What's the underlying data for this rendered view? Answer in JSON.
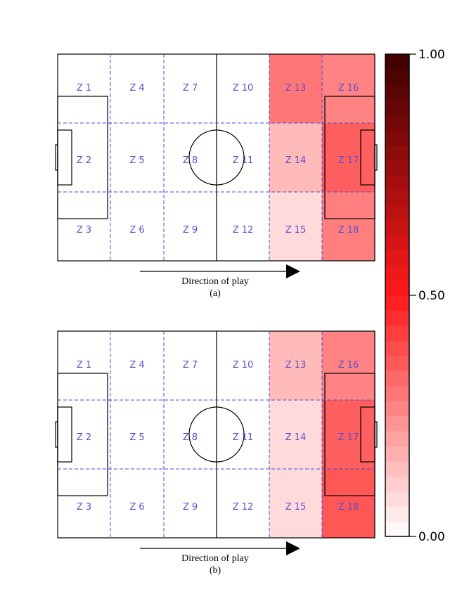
{
  "chart_data": {
    "type": "heatmap",
    "colorbar": {
      "min": 0.0,
      "max": 1.0,
      "ticks": [
        {
          "value": 1.0,
          "label": "1.00"
        },
        {
          "value": 0.5,
          "label": "0.50"
        },
        {
          "value": 0.0,
          "label": "0.00"
        }
      ],
      "colormap_stops": [
        "#ffffff",
        "#ff1a1a",
        "#3d0000"
      ]
    },
    "arrow_text": "Direction of play",
    "panels": [
      {
        "caption": "(a)",
        "zones": [
          {
            "id": 1,
            "label": "Z 1",
            "value": 0.0
          },
          {
            "id": 2,
            "label": "Z 2",
            "value": 0.0
          },
          {
            "id": 3,
            "label": "Z 3",
            "value": 0.0
          },
          {
            "id": 4,
            "label": "Z 4",
            "value": 0.0
          },
          {
            "id": 5,
            "label": "Z 5",
            "value": 0.0
          },
          {
            "id": 6,
            "label": "Z 6",
            "value": 0.0
          },
          {
            "id": 7,
            "label": "Z 7",
            "value": 0.0
          },
          {
            "id": 8,
            "label": "Z 8",
            "value": 0.0
          },
          {
            "id": 9,
            "label": "Z 9",
            "value": 0.0
          },
          {
            "id": 10,
            "label": "Z 10",
            "value": 0.0
          },
          {
            "id": 11,
            "label": "Z 11",
            "value": 0.0
          },
          {
            "id": 12,
            "label": "Z 12",
            "value": 0.0
          },
          {
            "id": 13,
            "label": "Z 13",
            "value": 0.3
          },
          {
            "id": 14,
            "label": "Z 14",
            "value": 0.15
          },
          {
            "id": 15,
            "label": "Z 15",
            "value": 0.08
          },
          {
            "id": 16,
            "label": "Z 16",
            "value": 0.27
          },
          {
            "id": 17,
            "label": "Z 17",
            "value": 0.35
          },
          {
            "id": 18,
            "label": "Z 18",
            "value": 0.28
          }
        ]
      },
      {
        "caption": "(b)",
        "zones": [
          {
            "id": 1,
            "label": "Z 1",
            "value": 0.0
          },
          {
            "id": 2,
            "label": "Z 2",
            "value": 0.0
          },
          {
            "id": 3,
            "label": "Z 3",
            "value": 0.0
          },
          {
            "id": 4,
            "label": "Z 4",
            "value": 0.0
          },
          {
            "id": 5,
            "label": "Z 5",
            "value": 0.0
          },
          {
            "id": 6,
            "label": "Z 6",
            "value": 0.0
          },
          {
            "id": 7,
            "label": "Z 7",
            "value": 0.0
          },
          {
            "id": 8,
            "label": "Z 8",
            "value": 0.0
          },
          {
            "id": 9,
            "label": "Z 9",
            "value": 0.0
          },
          {
            "id": 10,
            "label": "Z 10",
            "value": 0.0
          },
          {
            "id": 11,
            "label": "Z 11",
            "value": 0.0
          },
          {
            "id": 12,
            "label": "Z 12",
            "value": 0.0
          },
          {
            "id": 13,
            "label": "Z 13",
            "value": 0.15
          },
          {
            "id": 14,
            "label": "Z 14",
            "value": 0.08
          },
          {
            "id": 15,
            "label": "Z 15",
            "value": 0.08
          },
          {
            "id": 16,
            "label": "Z 16",
            "value": 0.27
          },
          {
            "id": 17,
            "label": "Z 17",
            "value": 0.35
          },
          {
            "id": 18,
            "label": "Z 18",
            "value": 0.37
          }
        ]
      }
    ]
  }
}
